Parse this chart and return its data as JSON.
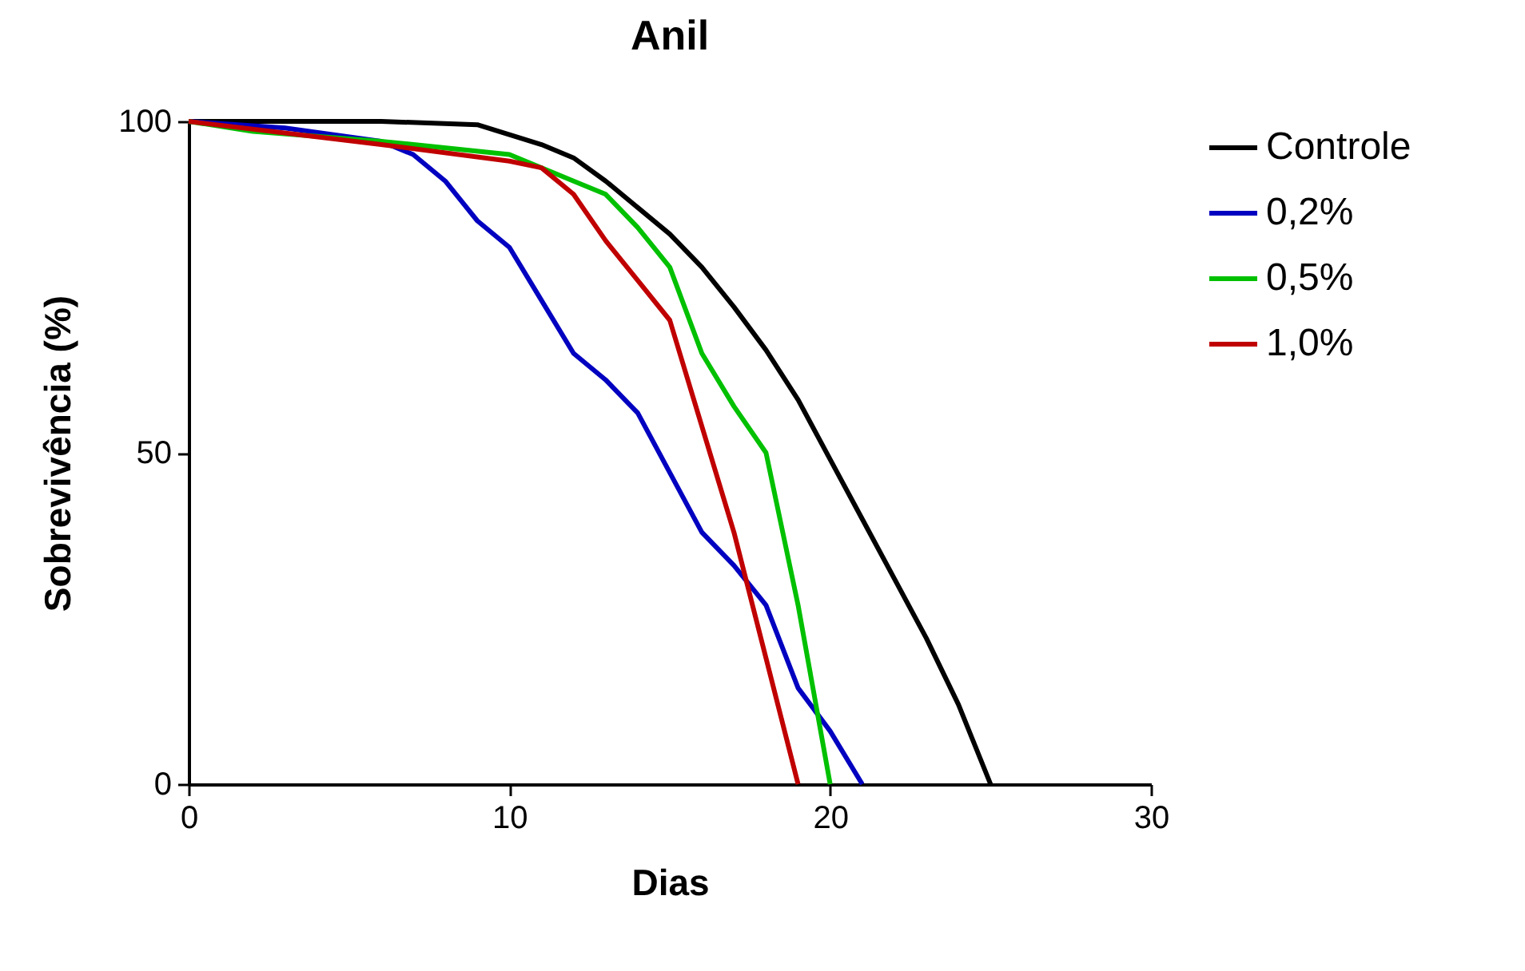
{
  "chart_data": {
    "type": "line",
    "title": "Anil",
    "xlabel": "Dias",
    "ylabel": "Sobrevivência (%)",
    "xlim": [
      0,
      30
    ],
    "xticks": [
      0,
      10,
      20,
      30
    ],
    "ylim": [
      0,
      100
    ],
    "yticks": [
      0,
      50,
      100
    ],
    "grid": false,
    "legend": "top right",
    "marker": "none",
    "line_style": "solid",
    "series": [
      {
        "name": "Controle",
        "color": "#000000",
        "x": [
          0,
          3,
          6,
          9,
          10,
          11,
          12,
          13,
          14,
          15,
          16,
          17,
          18,
          19,
          20,
          21,
          22,
          23,
          24,
          25
        ],
        "values": [
          100,
          100,
          100,
          99.5,
          98,
          96.5,
          94.5,
          91,
          87,
          83,
          78,
          72,
          65.5,
          58,
          49,
          40,
          31,
          22,
          12,
          0
        ]
      },
      {
        "name": "0,2%",
        "color": "#0000c0",
        "x": [
          0,
          3,
          6,
          7,
          8,
          9,
          10,
          11,
          12,
          13,
          14,
          15,
          16,
          17,
          18,
          19,
          20,
          21
        ],
        "values": [
          100,
          99,
          97,
          95,
          91,
          85,
          81,
          73,
          65,
          61,
          56,
          47,
          38,
          33,
          27,
          14.5,
          8,
          0
        ]
      },
      {
        "name": "0,5%",
        "color": "#00c000",
        "x": [
          0,
          2,
          6,
          10,
          12,
          13,
          14,
          15,
          16,
          17,
          18,
          19,
          20
        ],
        "values": [
          100,
          98.5,
          97,
          95,
          91,
          89,
          84,
          78,
          65,
          57,
          50,
          27,
          0
        ]
      },
      {
        "name": "1,0%",
        "color": "#c00000",
        "x": [
          0,
          6,
          10,
          11,
          12,
          13,
          14,
          15,
          16,
          17,
          18,
          19
        ],
        "values": [
          100,
          96.5,
          94,
          93,
          89,
          82,
          76,
          70,
          54,
          38,
          19,
          0
        ]
      }
    ]
  }
}
